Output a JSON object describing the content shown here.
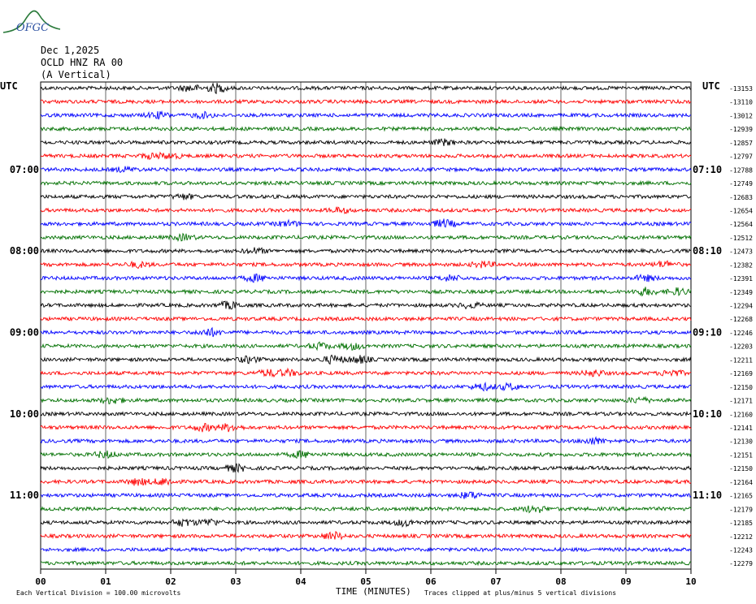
{
  "header": {
    "date": "Dec 1,2025",
    "station": "OCLD HNZ RA 00",
    "component": "(A Vertical)",
    "logo_text": "OFGC"
  },
  "axis": {
    "left_tz": "UTC",
    "right_tz": "UTC",
    "x_title": "TIME (MINUTES)",
    "footer_left": "Each Vertical Division =  100.00 microvolts",
    "footer_right": "Traces clipped at plus/minus 5 vertical divisions"
  },
  "colors": {
    "trace_cycle": [
      "#000000",
      "#ff0000",
      "#0000ff",
      "#007000"
    ],
    "grid": "#000000"
  },
  "chart_data": {
    "type": "line",
    "title": "OCLD HNZ RA 00",
    "xlabel": "TIME (MINUTES)",
    "ylabel": "",
    "x_ticks": [
      "00",
      "01",
      "02",
      "03",
      "04",
      "05",
      "06",
      "07",
      "08",
      "09",
      "10"
    ],
    "xlim": [
      0,
      10
    ],
    "minutes_per_line": 10,
    "left_time_labels": [
      {
        "line": 6,
        "label": "07:00"
      },
      {
        "line": 12,
        "label": "08:00"
      },
      {
        "line": 18,
        "label": "09:00"
      },
      {
        "line": 24,
        "label": "10:00"
      },
      {
        "line": 30,
        "label": "11:00"
      }
    ],
    "right_time_labels": [
      {
        "line": 6,
        "label": "07:10"
      },
      {
        "line": 12,
        "label": "08:10"
      },
      {
        "line": 18,
        "label": "09:10"
      },
      {
        "line": 24,
        "label": "10:10"
      },
      {
        "line": 30,
        "label": "11:10"
      }
    ],
    "line_offsets": [
      -13153,
      -13110,
      -13012,
      -12939,
      -12857,
      -12797,
      -12788,
      -12749,
      -12683,
      -12654,
      -12564,
      -12512,
      -12473,
      -12382,
      -12391,
      -12349,
      -12294,
      -12268,
      -12246,
      -12203,
      -12211,
      -12169,
      -12150,
      -12171,
      -12160,
      -12141,
      -12130,
      -12151,
      -12150,
      -12164,
      -12165,
      -12179,
      -12185,
      -12212,
      -12243,
      -12279
    ],
    "events": [
      {
        "line": 0,
        "minute": 2.3,
        "amp": 1.6
      },
      {
        "line": 0,
        "minute": 2.7,
        "amp": 2.2
      },
      {
        "line": 2,
        "minute": 1.8,
        "amp": 1.5
      },
      {
        "line": 2,
        "minute": 2.5,
        "amp": 1.3
      },
      {
        "line": 4,
        "minute": 6.2,
        "amp": 1.4
      },
      {
        "line": 5,
        "minute": 1.7,
        "amp": 1.2
      },
      {
        "line": 5,
        "minute": 2.0,
        "amp": 1.2
      },
      {
        "line": 6,
        "minute": 1.3,
        "amp": 1.1
      },
      {
        "line": 8,
        "minute": 2.2,
        "amp": 1.2
      },
      {
        "line": 9,
        "minute": 4.6,
        "amp": 1.3
      },
      {
        "line": 10,
        "minute": 6.2,
        "amp": 2.0
      },
      {
        "line": 10,
        "minute": 3.8,
        "amp": 1.3
      },
      {
        "line": 11,
        "minute": 2.2,
        "amp": 1.4
      },
      {
        "line": 12,
        "minute": 3.3,
        "amp": 1.3
      },
      {
        "line": 13,
        "minute": 1.5,
        "amp": 1.3
      },
      {
        "line": 13,
        "minute": 6.8,
        "amp": 1.4
      },
      {
        "line": 13,
        "minute": 9.6,
        "amp": 1.5
      },
      {
        "line": 14,
        "minute": 3.3,
        "amp": 1.7
      },
      {
        "line": 14,
        "minute": 6.3,
        "amp": 1.4
      },
      {
        "line": 14,
        "minute": 9.3,
        "amp": 1.4
      },
      {
        "line": 15,
        "minute": 9.3,
        "amp": 1.8
      },
      {
        "line": 15,
        "minute": 9.8,
        "amp": 1.6
      },
      {
        "line": 16,
        "minute": 2.9,
        "amp": 1.8
      },
      {
        "line": 16,
        "minute": 6.6,
        "amp": 1.3
      },
      {
        "line": 18,
        "minute": 2.6,
        "amp": 1.9
      },
      {
        "line": 19,
        "minute": 4.3,
        "amp": 1.6
      },
      {
        "line": 19,
        "minute": 4.8,
        "amp": 1.6
      },
      {
        "line": 20,
        "minute": 3.2,
        "amp": 1.5
      },
      {
        "line": 20,
        "minute": 4.5,
        "amp": 2.0
      },
      {
        "line": 20,
        "minute": 4.9,
        "amp": 1.8
      },
      {
        "line": 21,
        "minute": 3.5,
        "amp": 1.6
      },
      {
        "line": 21,
        "minute": 3.8,
        "amp": 1.5
      },
      {
        "line": 21,
        "minute": 8.5,
        "amp": 1.5
      },
      {
        "line": 21,
        "minute": 9.7,
        "amp": 1.6
      },
      {
        "line": 22,
        "minute": 6.8,
        "amp": 1.6
      },
      {
        "line": 22,
        "minute": 7.2,
        "amp": 1.5
      },
      {
        "line": 23,
        "minute": 1.1,
        "amp": 1.6
      },
      {
        "line": 23,
        "minute": 9.2,
        "amp": 1.3
      },
      {
        "line": 25,
        "minute": 2.5,
        "amp": 1.7
      },
      {
        "line": 25,
        "minute": 2.9,
        "amp": 1.8
      },
      {
        "line": 26,
        "minute": 8.5,
        "amp": 1.6
      },
      {
        "line": 27,
        "minute": 1.0,
        "amp": 1.6
      },
      {
        "line": 27,
        "minute": 4.0,
        "amp": 1.5
      },
      {
        "line": 28,
        "minute": 3.0,
        "amp": 1.7
      },
      {
        "line": 29,
        "minute": 1.5,
        "amp": 1.7
      },
      {
        "line": 29,
        "minute": 1.9,
        "amp": 1.8
      },
      {
        "line": 30,
        "minute": 6.6,
        "amp": 1.7
      },
      {
        "line": 31,
        "minute": 7.6,
        "amp": 1.9
      },
      {
        "line": 32,
        "minute": 2.2,
        "amp": 1.8
      },
      {
        "line": 32,
        "minute": 2.6,
        "amp": 1.6
      },
      {
        "line": 32,
        "minute": 5.6,
        "amp": 1.7
      },
      {
        "line": 33,
        "minute": 4.5,
        "amp": 1.9
      }
    ],
    "grid": true
  }
}
